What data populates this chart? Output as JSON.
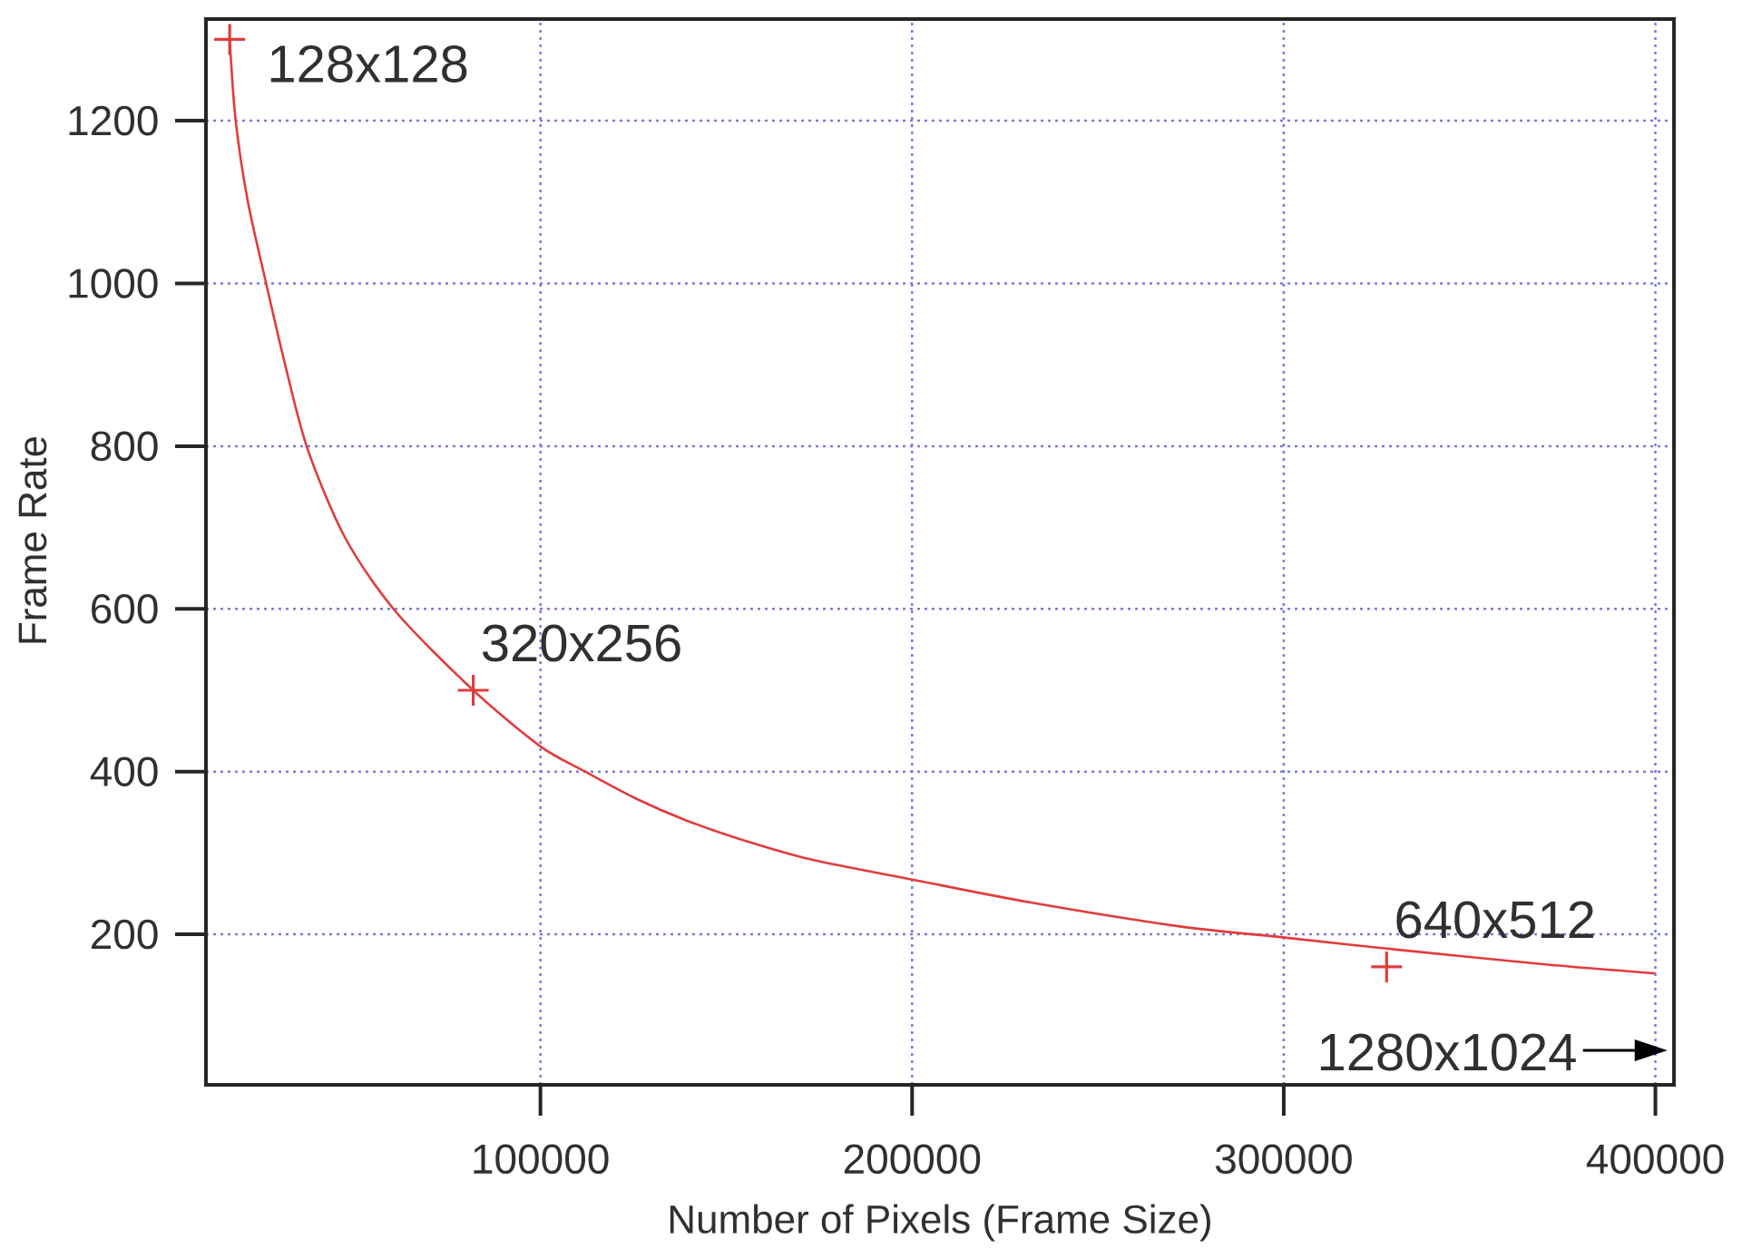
{
  "chart_data": {
    "type": "scatter",
    "xlabel": "Number of Pixels (Frame Size)",
    "ylabel": "Frame Rate",
    "series": [
      {
        "color": "#e03c3c",
        "marker": "cross",
        "x": [
          16384,
          81920,
          327680
        ],
        "values": [
          1300,
          500,
          160
        ]
      },
      {
        "type": "line",
        "color": "#e03c3c",
        "x": [
          16384,
          18000,
          21300,
          26200,
          31100,
          37300,
          47500,
          61000,
          81920,
          100000,
          112000,
          125600,
          139200,
          153000,
          172800,
          200400,
          232000,
          271600,
          300200,
          330800,
          370400,
          400000
        ],
        "values": [
          1300,
          1200,
          1100,
          1000,
          904,
          797,
          687,
          597,
          500,
          431,
          400,
          367,
          340,
          318,
          292,
          267,
          239,
          210,
          196,
          181,
          163,
          152
        ]
      }
    ],
    "annotations": [
      {
        "text": "128x128",
        "x": 16384,
        "y": 1300
      },
      {
        "text": "320x256",
        "x": 81920,
        "y": 500
      },
      {
        "text": "640x512",
        "x": 327680,
        "y": 160
      },
      "1280x1024"
    ],
    "xlim": [
      10000,
      405000
    ],
    "ylim": [
      15,
      1325
    ],
    "xticks": [
      100000,
      200000,
      300000,
      400000
    ],
    "yticks": [
      200,
      400,
      600,
      800,
      1000,
      1200
    ],
    "grid": true
  }
}
